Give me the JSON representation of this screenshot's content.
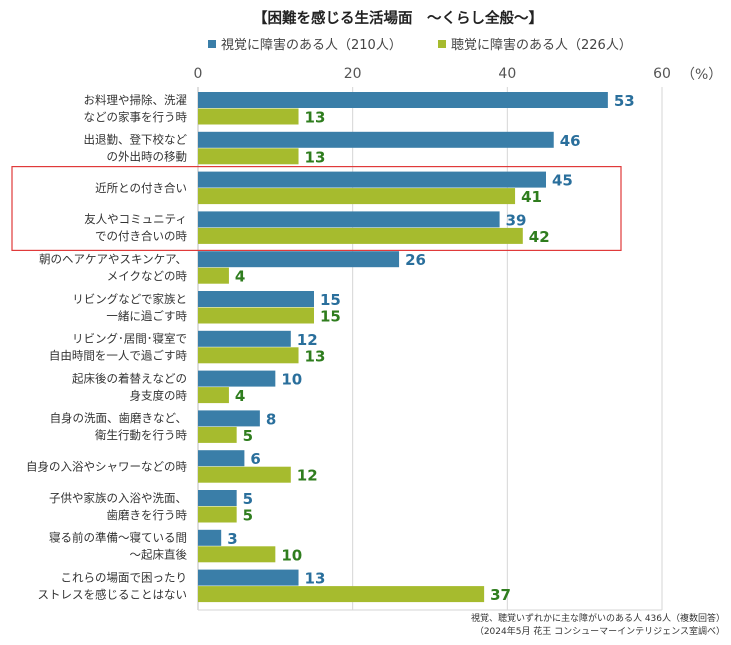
{
  "chart_data": {
    "type": "bar",
    "orientation": "horizontal",
    "title": "【困難を感じる生活場面　〜くらし全般〜】",
    "unit_label": "（%）",
    "xlim": [
      0,
      60
    ],
    "xticks": [
      "0",
      "20",
      "40",
      "60"
    ],
    "grid": true,
    "legend_position": "top",
    "categories": [
      [
        "お料理や掃除、洗濯",
        "などの家事を行う時"
      ],
      [
        "出退勤、登下校など",
        "の外出時の移動"
      ],
      [
        "近所との付き合い"
      ],
      [
        "友人やコミュニティ",
        "での付き合いの時"
      ],
      [
        "朝のヘアケアやスキンケア、",
        "メイクなどの時"
      ],
      [
        "リビングなどで家族と",
        "一緒に過ごす時"
      ],
      [
        "リビング･居間･寝室で",
        "自由時間を一人で過ごす時"
      ],
      [
        "起床後の着替えなどの",
        "身支度の時"
      ],
      [
        "自身の洗面、歯磨きなど、",
        "衛生行動を行う時"
      ],
      [
        "自身の入浴やシャワーなどの時"
      ],
      [
        "子供や家族の入浴や洗面、",
        "歯磨きを行う時"
      ],
      [
        "寝る前の準備〜寝ている間",
        "〜起床直後"
      ],
      [
        "これらの場面で困ったり",
        "ストレスを感じることはない"
      ]
    ],
    "series": [
      {
        "name": "視覚に障害のある人（210人）",
        "color": "#3a7ea8",
        "label_color": "#2a6f9c",
        "values": [
          53,
          46,
          45,
          39,
          26,
          15,
          12,
          10,
          8,
          6,
          5,
          3,
          13
        ]
      },
      {
        "name": "聴覚に障害のある人（226人）",
        "color": "#a6bb2e",
        "label_color": "#2f7d1e",
        "values": [
          13,
          13,
          41,
          42,
          4,
          15,
          13,
          4,
          5,
          12,
          5,
          10,
          37
        ]
      }
    ],
    "highlight_categories": [
      2,
      3
    ],
    "highlight_color": "#e03a3a",
    "footnote": [
      "視覚、聴覚いずれかに主な障がいのある人 436人（複数回答）",
      "（2024年5月  花王  コンシューマーインテリジェンス室調べ）"
    ]
  }
}
